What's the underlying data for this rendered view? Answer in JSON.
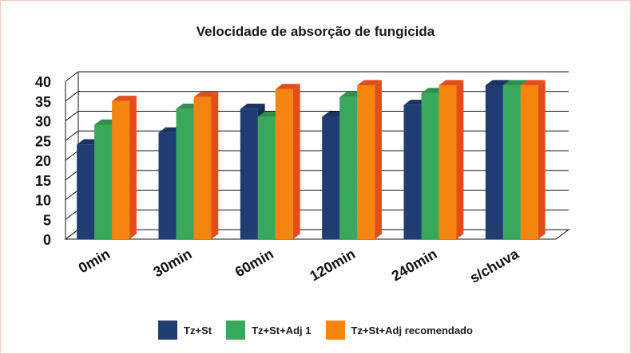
{
  "chart_data": {
    "type": "bar",
    "title": "Velocidade de absorção de fungicida",
    "categories": [
      "0min",
      "30min",
      "60min",
      "120min",
      "240min",
      "s/chuva"
    ],
    "series": [
      {
        "name": "Tz+St",
        "color": "#1f3d73",
        "values": [
          24,
          27,
          33,
          31,
          34,
          39
        ]
      },
      {
        "name": "Tz+St+Adj 1",
        "color": "#3aa85a",
        "values": [
          29,
          33,
          31,
          36,
          37,
          39
        ]
      },
      {
        "name": "Tz+St+Adj recomendado",
        "color": "#f5850f",
        "values": [
          35,
          36,
          38,
          39,
          39,
          39
        ]
      }
    ],
    "yticks": [
      "0",
      "5",
      "10",
      "15",
      "20",
      "25",
      "30",
      "35",
      "40"
    ],
    "ylim": [
      0,
      40
    ],
    "grid": true,
    "legend_position": "bottom",
    "style": "3d-bar"
  }
}
